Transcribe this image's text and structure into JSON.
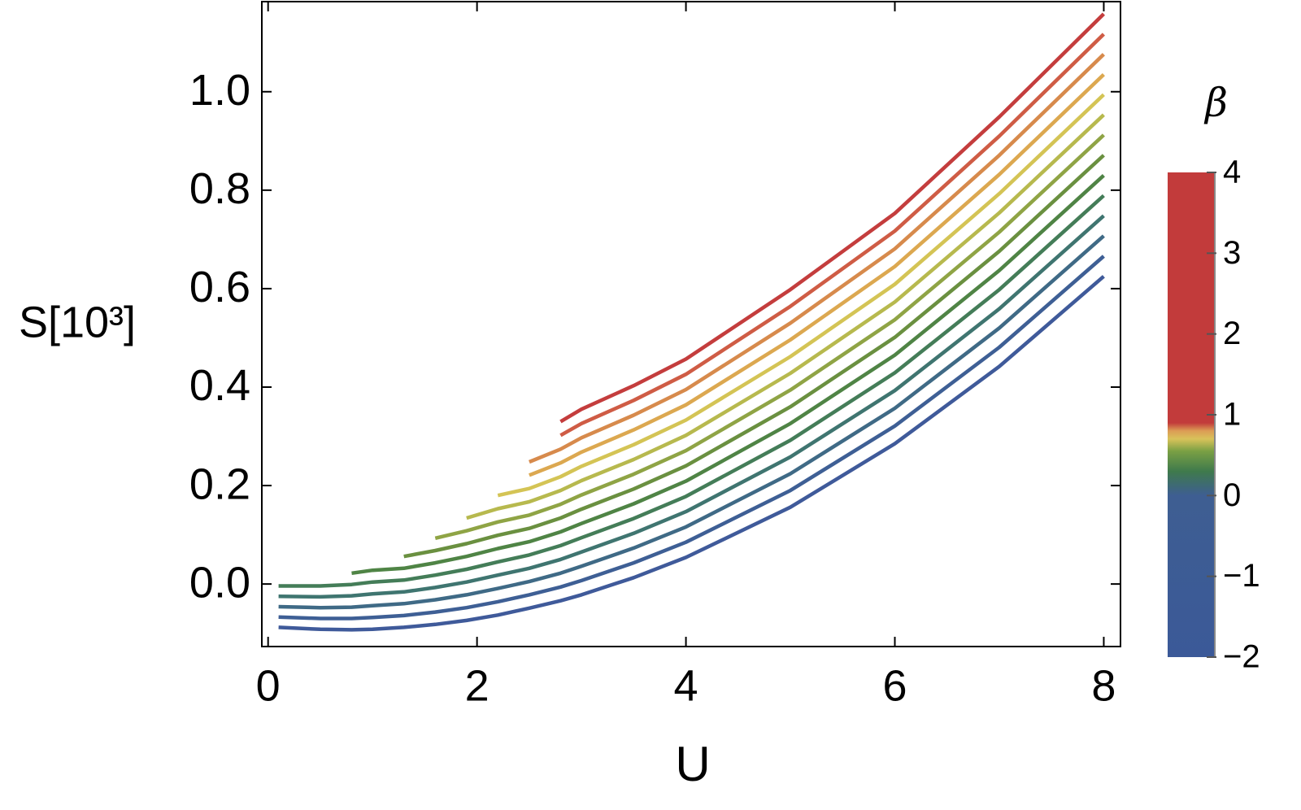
{
  "chart_data": {
    "type": "line",
    "x_label": "U",
    "y_label": "S[10³]",
    "x": [
      0.1,
      0.5,
      0.8,
      1,
      1.3,
      1.6,
      1.9,
      2.2,
      2.5,
      2.8,
      3,
      3.5,
      4,
      5,
      6,
      7,
      8
    ],
    "xlim": [
      -0.06,
      8.16
    ],
    "ylim": [
      -0.127,
      1.183
    ],
    "xticks": [
      0,
      2,
      4,
      6,
      8
    ],
    "yticks": [
      {
        "value": 0,
        "label": "0.0"
      },
      0.2,
      0.4,
      0.6,
      0.8,
      {
        "value": 1,
        "label": "1.0"
      }
    ],
    "series": [
      {
        "color": "#3f5a9a",
        "values": [
          -0.088,
          -0.092,
          -0.093,
          -0.092,
          -0.088,
          -0.082,
          -0.074,
          -0.063,
          -0.049,
          -0.034,
          -0.022,
          0.013,
          0.054,
          0.156,
          0.285,
          0.442,
          0.625
        ]
      },
      {
        "color": "#3e5f95",
        "values": [
          -0.067,
          -0.07,
          -0.07,
          -0.068,
          -0.064,
          -0.057,
          -0.048,
          -0.036,
          -0.022,
          -0.006,
          0.007,
          0.043,
          0.085,
          0.19,
          0.321,
          0.481,
          0.666
        ]
      },
      {
        "color": "#3f6a86",
        "values": [
          -0.046,
          -0.048,
          -0.047,
          -0.044,
          -0.04,
          -0.032,
          -0.022,
          -0.009,
          0.005,
          0.022,
          0.036,
          0.073,
          0.116,
          0.224,
          0.357,
          0.52,
          0.707
        ]
      },
      {
        "color": "#3f7570",
        "values": [
          -0.025,
          -0.026,
          -0.024,
          -0.02,
          -0.016,
          -0.007,
          0.004,
          0.018,
          0.032,
          0.05,
          0.065,
          0.103,
          0.147,
          0.258,
          0.393,
          0.559,
          0.748
        ]
      },
      {
        "color": "#447d58",
        "values": [
          -0.004,
          -0.004,
          -0.001,
          0.004,
          0.008,
          0.018,
          0.03,
          0.045,
          0.059,
          0.078,
          0.094,
          0.133,
          0.178,
          0.292,
          0.429,
          0.598,
          0.789
        ]
      },
      {
        "color": "#4f8445",
        "values": [
          null,
          null,
          0.022,
          0.028,
          0.032,
          0.043,
          0.056,
          0.072,
          0.086,
          0.106,
          0.123,
          0.163,
          0.209,
          0.326,
          0.465,
          0.637,
          0.83
        ]
      },
      {
        "color": "#6a9040",
        "values": [
          null,
          null,
          null,
          null,
          0.056,
          0.068,
          0.082,
          0.099,
          0.113,
          0.134,
          0.152,
          0.193,
          0.24,
          0.36,
          0.501,
          0.676,
          0.871
        ]
      },
      {
        "color": "#8fa445",
        "values": [
          null,
          null,
          null,
          null,
          null,
          0.093,
          0.108,
          0.126,
          0.14,
          0.162,
          0.181,
          0.223,
          0.271,
          0.394,
          0.537,
          0.715,
          0.912
        ]
      },
      {
        "color": "#b7b94e",
        "values": [
          null,
          null,
          null,
          null,
          null,
          null,
          0.134,
          0.153,
          0.167,
          0.19,
          0.21,
          0.253,
          0.302,
          0.428,
          0.573,
          0.754,
          0.953
        ]
      },
      {
        "color": "#d4c455",
        "values": [
          null,
          null,
          null,
          null,
          null,
          null,
          null,
          0.18,
          0.194,
          0.218,
          0.239,
          0.283,
          0.333,
          0.462,
          0.609,
          0.793,
          0.994
        ]
      },
      {
        "color": "#dca850",
        "values": [
          null,
          null,
          null,
          null,
          null,
          null,
          null,
          null,
          0.221,
          0.246,
          0.268,
          0.313,
          0.364,
          0.496,
          0.645,
          0.832,
          1.035
        ]
      },
      {
        "color": "#d78a4c",
        "values": [
          null,
          null,
          null,
          null,
          null,
          null,
          null,
          null,
          0.248,
          0.274,
          0.297,
          0.343,
          0.395,
          0.53,
          0.681,
          0.871,
          1.076
        ]
      },
      {
        "color": "#cf5c45",
        "values": [
          null,
          null,
          null,
          null,
          null,
          null,
          null,
          null,
          null,
          0.302,
          0.326,
          0.373,
          0.426,
          0.564,
          0.717,
          0.91,
          1.117
        ]
      },
      {
        "color": "#c43d3d",
        "values": [
          null,
          null,
          null,
          null,
          null,
          null,
          null,
          null,
          null,
          0.33,
          0.355,
          0.403,
          0.457,
          0.598,
          0.753,
          0.949,
          1.158
        ]
      }
    ],
    "colorbar": {
      "label": "β",
      "lim": [
        -2,
        4
      ],
      "ticks": [
        {
          "value": -2,
          "label": "−2"
        },
        {
          "value": -1,
          "label": "−1"
        },
        0,
        1,
        2,
        3,
        4
      ],
      "stops": [
        {
          "value": -2,
          "color": "#3b5998"
        },
        {
          "value": 0.0,
          "color": "#3e5e92"
        },
        {
          "value": 0.3,
          "color": "#3f7a4c"
        },
        {
          "value": 0.55,
          "color": "#7aa044"
        },
        {
          "value": 0.7,
          "color": "#d8c25a"
        },
        {
          "value": 0.8,
          "color": "#dc9d55"
        },
        {
          "value": 0.9,
          "color": "#c23b3b"
        },
        {
          "value": 4,
          "color": "#c23b3b"
        }
      ]
    }
  }
}
